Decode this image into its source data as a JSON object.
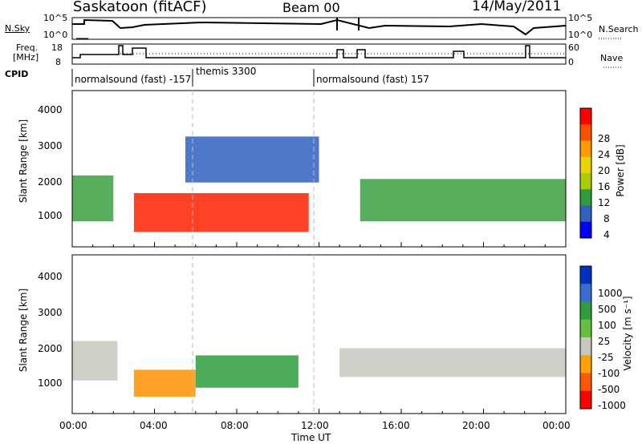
{
  "header": {
    "station": "Saskatoon (fitACF)",
    "beam": "Beam 00",
    "date": "14/May/2011"
  },
  "noise_panel": {
    "left_label": "N.Sky",
    "right_label": "N.Search",
    "left_ticks": [
      "10^5",
      "10^0"
    ],
    "right_ticks": [
      "10^5",
      "10^0"
    ]
  },
  "freq_panel": {
    "left_label_1": "Freq.",
    "left_label_2": "[MHz]",
    "right_label": "Nave",
    "left_ticks": [
      "18",
      "8"
    ],
    "right_ticks": [
      "60",
      "0"
    ]
  },
  "cpid": {
    "label": "CPID",
    "segments": [
      {
        "text": "normalsound (fast) -157",
        "start_hour": 0.0
      },
      {
        "text": "themis 3300",
        "start_hour": 6.0
      },
      {
        "text": "normalsound (fast) 157",
        "start_hour": 12.0
      }
    ]
  },
  "power_panel": {
    "ylabel": "Slant Range [km]",
    "yticks": [
      "1000",
      "2000",
      "3000",
      "4000"
    ],
    "colorbar_label": "Power [dB]",
    "colorbar_ticks": [
      "28",
      "24",
      "20",
      "16",
      "12",
      "8",
      "4"
    ],
    "colorbar_colors": [
      "#ff0000",
      "#ff5000",
      "#ff9a00",
      "#e7d400",
      "#aacc00",
      "#2e9e3c",
      "#3060c0",
      "#0000ff"
    ]
  },
  "velocity_panel": {
    "ylabel": "Slant Range [km]",
    "yticks": [
      "1000",
      "2000",
      "3000",
      "4000"
    ],
    "colorbar_label": "Velocity [m s⁻¹]",
    "colorbar_ticks": [
      "1000",
      "500",
      "100",
      "25",
      "-25",
      "-100",
      "-500",
      "-1000"
    ],
    "colorbar_colors": [
      "#0030c0",
      "#3a6bd0",
      "#2e9e3c",
      "#66c040",
      "#c8c8c0",
      "#ffa000",
      "#ff5800",
      "#ff0000"
    ]
  },
  "time_axis": {
    "xlabel": "Time UT",
    "ticks": [
      "00:00",
      "04:00",
      "08:00",
      "12:00",
      "16:00",
      "20:00",
      "00:00"
    ]
  },
  "chart_data": [
    {
      "type": "heatmap",
      "title": "Power",
      "xlabel": "Time UT",
      "ylabel": "Slant Range [km]",
      "x_range_hours": [
        0,
        24
      ],
      "ylim": [
        180,
        4600
      ],
      "colorbar": {
        "label": "Power [dB]",
        "range": [
          0,
          30
        ]
      },
      "regions": [
        {
          "t0": 0.0,
          "t1": 2.0,
          "r0": 900,
          "r1": 2200,
          "level": "green"
        },
        {
          "t0": 3.0,
          "t1": 11.5,
          "r0": 600,
          "r1": 1700,
          "level": "red"
        },
        {
          "t0": 5.5,
          "t1": 12.0,
          "r0": 2000,
          "r1": 3300,
          "level": "blue"
        },
        {
          "t0": 14.0,
          "t1": 24.0,
          "r0": 900,
          "r1": 2100,
          "level": "green"
        }
      ]
    },
    {
      "type": "heatmap",
      "title": "Velocity",
      "xlabel": "Time UT",
      "ylabel": "Slant Range [km]",
      "x_range_hours": [
        0,
        24
      ],
      "ylim": [
        180,
        4600
      ],
      "colorbar": {
        "label": "Velocity [m s-1]",
        "range": [
          -1000,
          1000
        ]
      },
      "regions": [
        {
          "t0": 0.0,
          "t1": 2.2,
          "r0": 1100,
          "r1": 2200,
          "level": "grey"
        },
        {
          "t0": 3.0,
          "t1": 6.0,
          "r0": 650,
          "r1": 1400,
          "level": "orange"
        },
        {
          "t0": 6.0,
          "t1": 11.0,
          "r0": 900,
          "r1": 1800,
          "level": "green"
        },
        {
          "t0": 13.0,
          "t1": 24.0,
          "r0": 1200,
          "r1": 2000,
          "level": "grey"
        }
      ]
    }
  ]
}
